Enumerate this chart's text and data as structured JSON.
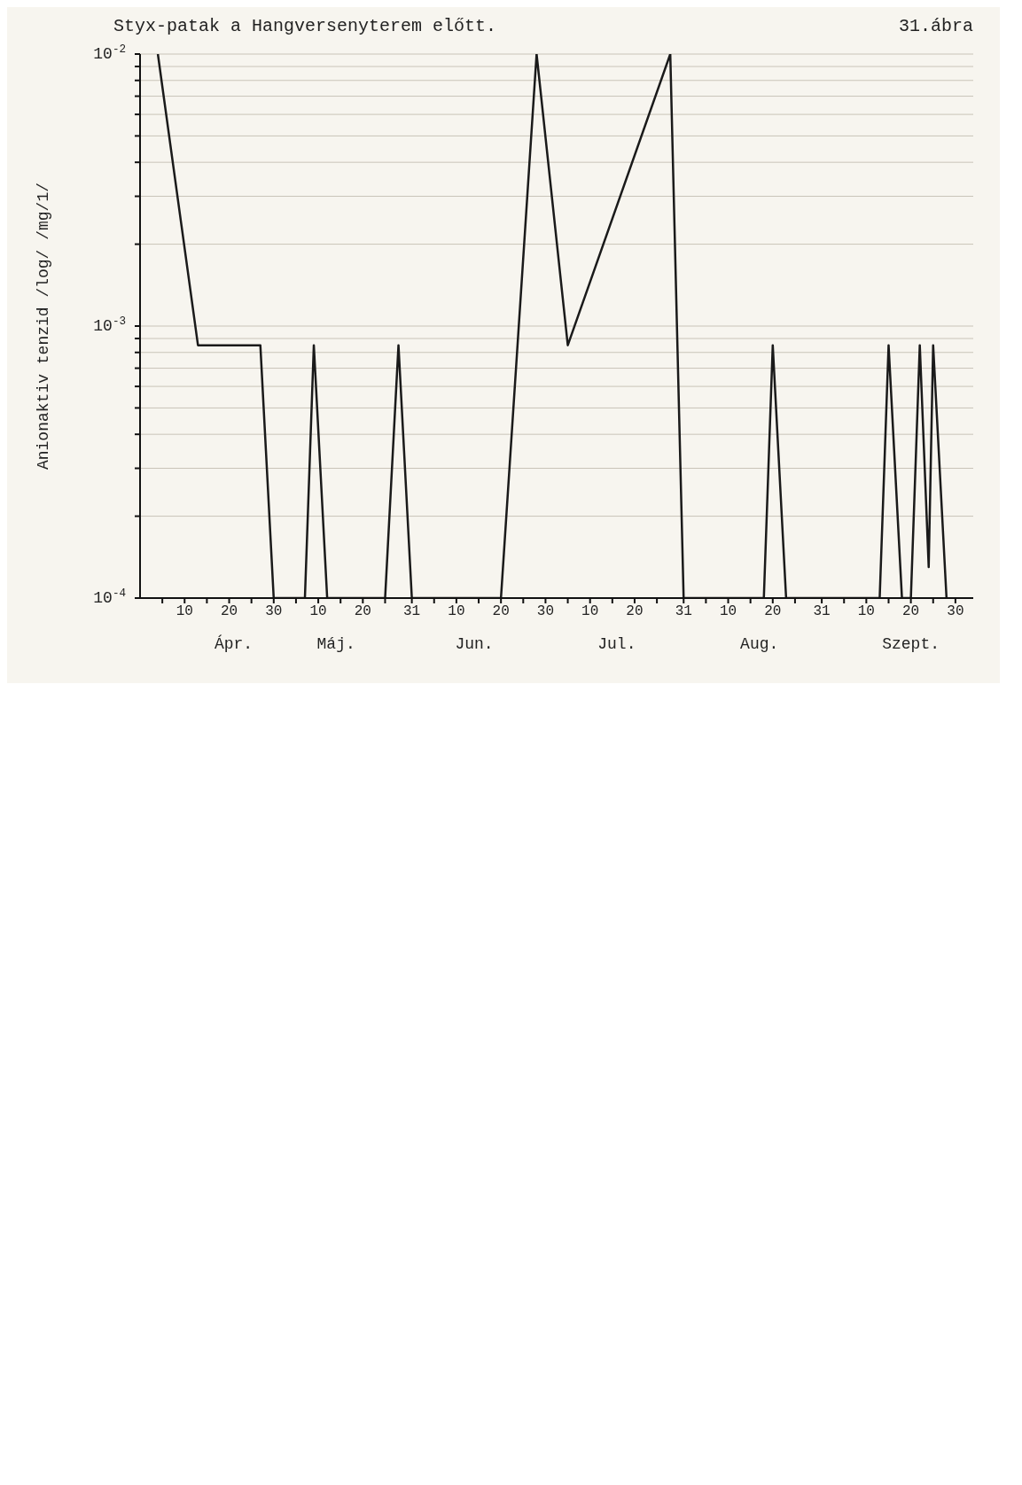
{
  "chart_data": {
    "type": "line",
    "title": "Styx-patak a Hangversenyterem előtt.",
    "ylabel": "Anionaktiv tenzid /log/ /mg/1/",
    "annotations": [
      "31.ábra"
    ],
    "x": [
      "--04-04",
      "--04-13",
      "--04-27",
      "--04-30",
      "--05-07",
      "--05-09",
      "--05-12",
      "--05-25",
      "--05-28",
      "--05-31",
      "--06-20",
      "--06-28",
      "--07-05",
      "--07-28",
      "--07-31",
      "--08-18",
      "--08-20",
      "--08-23",
      "--09-13",
      "--09-15",
      "--09-18",
      "--09-20",
      "--09-22",
      "--09-24",
      "--09-25",
      "--09-28"
    ],
    "series": [
      {
        "color": "#1a1a1a",
        "values": [
          0.01,
          0.00085,
          0.00085,
          0.0001,
          0.0001,
          0.00085,
          0.0001,
          0.0001,
          0.00085,
          0.0001,
          0.0001,
          0.01,
          0.00085,
          0.01,
          0.0001,
          0.0001,
          0.00085,
          0.0001,
          0.0001,
          0.00085,
          0.0001,
          0.0001,
          0.00085,
          0.00013,
          0.00085,
          0.0001
        ]
      }
    ],
    "log": "y",
    "ylim": [
      0.0001,
      0.01
    ],
    "yticks": [
      {
        "value": 0.0001,
        "label": "10$^{-4}$"
      },
      {
        "value": 0.0002,
        "label": null
      },
      {
        "value": 0.0003,
        "label": null
      },
      {
        "value": 0.0004,
        "label": null
      },
      {
        "value": 0.0005,
        "label": null
      },
      {
        "value": 0.0006,
        "label": null
      },
      {
        "value": 0.0007,
        "label": null
      },
      {
        "value": 0.0008,
        "label": null
      },
      {
        "value": 0.0009,
        "label": null
      },
      {
        "value": 0.001,
        "label": "10$^{-3}$"
      },
      {
        "value": 0.002,
        "label": null
      },
      {
        "value": 0.003,
        "label": null
      },
      {
        "value": 0.004,
        "label": null
      },
      {
        "value": 0.005,
        "label": null
      },
      {
        "value": 0.006,
        "label": null
      },
      {
        "value": 0.007,
        "label": null
      },
      {
        "value": 0.008,
        "label": null
      },
      {
        "value": 0.009,
        "label": null
      },
      {
        "value": 0.01,
        "label": "10$^{-2}$"
      }
    ],
    "xlim": [
      "--03-31",
      "--10-04"
    ],
    "xticks": [
      {
        "value": "--04-05",
        "label": null
      },
      {
        "value": "--04-10",
        "label": "10"
      },
      {
        "value": "--04-15",
        "label": null
      },
      {
        "value": "--04-20",
        "label": "20"
      },
      {
        "value": "--04-25",
        "label": null
      },
      {
        "value": "--04-30",
        "label": "30"
      },
      {
        "value": "--05-05",
        "label": null
      },
      {
        "value": "--05-10",
        "label": "10"
      },
      {
        "value": "--05-15",
        "label": null
      },
      {
        "value": "--05-20",
        "label": "20"
      },
      {
        "value": "--05-25",
        "label": null
      },
      {
        "value": "--05-31",
        "label": "31"
      },
      {
        "value": "--06-05",
        "label": null
      },
      {
        "value": "--06-10",
        "label": "10"
      },
      {
        "value": "--06-15",
        "label": null
      },
      {
        "value": "--06-20",
        "label": "20"
      },
      {
        "value": "--06-25",
        "label": null
      },
      {
        "value": "--06-30",
        "label": "30"
      },
      {
        "value": "--07-05",
        "label": null
      },
      {
        "value": "--07-10",
        "label": "10"
      },
      {
        "value": "--07-15",
        "label": null
      },
      {
        "value": "--07-20",
        "label": "20"
      },
      {
        "value": "--07-25",
        "label": null
      },
      {
        "value": "--07-31",
        "label": "31"
      },
      {
        "value": "--08-05",
        "label": null
      },
      {
        "value": "--08-10",
        "label": "10"
      },
      {
        "value": "--08-15",
        "label": null
      },
      {
        "value": "--08-20",
        "label": "20"
      },
      {
        "value": "--08-25",
        "label": null
      },
      {
        "value": "--08-31",
        "label": "31"
      },
      {
        "value": "--09-05",
        "label": null
      },
      {
        "value": "--09-10",
        "label": "10"
      },
      {
        "value": "--09-15",
        "label": null
      },
      {
        "value": "--09-20",
        "label": "20"
      },
      {
        "value": "--09-25",
        "label": null
      },
      {
        "value": "--09-30",
        "label": "30"
      }
    ],
    "x2lim": [
      "--03-31",
      "--10-04"
    ],
    "x2ticks": [
      {
        "value": "--04-21",
        "label": "Ápr."
      },
      {
        "value": "--05-14",
        "label": "Máj."
      },
      {
        "value": "--06-14",
        "label": "Jun."
      },
      {
        "value": "--07-16",
        "label": "Jul."
      },
      {
        "value": "--08-17",
        "label": "Aug."
      },
      {
        "value": "--09-20",
        "label": "Szept."
      }
    ],
    "grid": true
  }
}
